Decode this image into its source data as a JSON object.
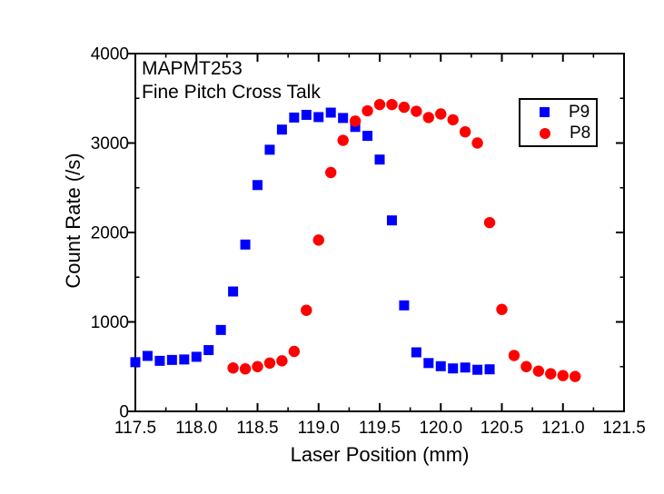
{
  "chart_data": {
    "type": "scatter",
    "title_lines": [
      "MAPMT253",
      "Fine Pitch Cross Talk"
    ],
    "xlabel": "Laser Position (mm)",
    "ylabel": "Count Rate (/s)",
    "xlim": [
      117.5,
      121.5
    ],
    "ylim": [
      0,
      4000
    ],
    "grid": false,
    "legend": {
      "position": "top-right",
      "items": [
        {
          "label": "P9",
          "marker": "square",
          "color": "#0000ff"
        },
        {
          "label": "P8",
          "marker": "circle",
          "color": "#ff0000"
        }
      ]
    },
    "x_major_ticks": [
      117.5,
      118.0,
      118.5,
      119.0,
      119.5,
      120.0,
      120.5,
      121.0,
      121.5
    ],
    "x_tick_labels": [
      "117.5",
      "118.0",
      "118.5",
      "119.0",
      "119.5",
      "120.0",
      "120.5",
      "121.0",
      "121.5"
    ],
    "x_minor_ticks": [
      117.75,
      118.25,
      118.75,
      119.25,
      119.75,
      120.25,
      120.75,
      121.25
    ],
    "y_major_ticks": [
      0,
      1000,
      2000,
      3000,
      4000
    ],
    "y_tick_labels": [
      "0",
      "1000",
      "2000",
      "3000",
      "4000"
    ],
    "y_minor_ticks": [
      500,
      1500,
      2500,
      3500
    ],
    "series": [
      {
        "name": "P9",
        "marker": "square",
        "color": "#0000ff",
        "points": [
          [
            117.5,
            550
          ],
          [
            117.6,
            620
          ],
          [
            117.7,
            565
          ],
          [
            117.8,
            575
          ],
          [
            117.9,
            580
          ],
          [
            118.0,
            610
          ],
          [
            118.1,
            685
          ],
          [
            118.2,
            910
          ],
          [
            118.3,
            1340
          ],
          [
            118.4,
            1865
          ],
          [
            118.5,
            2530
          ],
          [
            118.6,
            2925
          ],
          [
            118.7,
            3150
          ],
          [
            118.8,
            3285
          ],
          [
            118.9,
            3315
          ],
          [
            119.0,
            3290
          ],
          [
            119.1,
            3340
          ],
          [
            119.2,
            3280
          ],
          [
            119.3,
            3180
          ],
          [
            119.4,
            3080
          ],
          [
            119.5,
            2815
          ],
          [
            119.6,
            2135
          ],
          [
            119.7,
            1185
          ],
          [
            119.8,
            660
          ],
          [
            119.9,
            540
          ],
          [
            120.0,
            505
          ],
          [
            120.1,
            480
          ],
          [
            120.2,
            490
          ],
          [
            120.3,
            465
          ],
          [
            120.4,
            470
          ]
        ]
      },
      {
        "name": "P8",
        "marker": "circle",
        "color": "#ff0000",
        "points": [
          [
            118.3,
            485
          ],
          [
            118.4,
            475
          ],
          [
            118.5,
            500
          ],
          [
            118.6,
            540
          ],
          [
            118.7,
            565
          ],
          [
            118.8,
            670
          ],
          [
            118.9,
            1130
          ],
          [
            119.0,
            1915
          ],
          [
            119.1,
            2670
          ],
          [
            119.2,
            3030
          ],
          [
            119.3,
            3245
          ],
          [
            119.4,
            3360
          ],
          [
            119.5,
            3430
          ],
          [
            119.6,
            3430
          ],
          [
            119.7,
            3400
          ],
          [
            119.8,
            3355
          ],
          [
            119.9,
            3285
          ],
          [
            120.0,
            3325
          ],
          [
            120.1,
            3260
          ],
          [
            120.2,
            3125
          ],
          [
            120.3,
            3000
          ],
          [
            120.4,
            2110
          ],
          [
            120.5,
            1140
          ],
          [
            120.6,
            625
          ],
          [
            120.7,
            500
          ],
          [
            120.8,
            450
          ],
          [
            120.9,
            420
          ],
          [
            121.0,
            400
          ],
          [
            121.1,
            390
          ]
        ]
      }
    ]
  },
  "colors": {
    "background": "#ffffff",
    "frame": "#000000",
    "text": "#000000",
    "series_p9": "#0000ff",
    "series_p8": "#ff0000"
  }
}
